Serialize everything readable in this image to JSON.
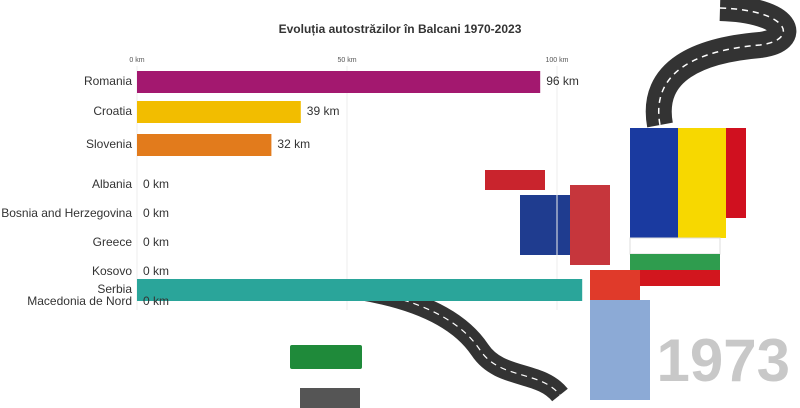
{
  "chart_data": {
    "type": "bar",
    "orientation": "horizontal",
    "title": "Evoluția autostrăzilor în Balcani 1970-2023",
    "categories": [
      "Romania",
      "Croatia",
      "Slovenia",
      "Albania",
      "Bosnia and Herzegovina",
      "Greece",
      "Kosovo",
      "Serbia",
      "Macedonia de Nord"
    ],
    "values": [
      96,
      39,
      32,
      0,
      0,
      0,
      0,
      106,
      0
    ],
    "value_labels": [
      "96 km",
      "39 km",
      "32 km",
      "0 km",
      "0 km",
      "0 km",
      "0 km",
      null,
      "0 km"
    ],
    "colors": [
      "#a3186f",
      "#f2bd00",
      "#e27b1c",
      "#888888",
      "#888888",
      "#888888",
      "#888888",
      "#2aa59a",
      "#888888"
    ],
    "xlim": [
      0,
      100
    ],
    "xticks": [
      {
        "value": 0,
        "label": "0 km"
      },
      {
        "value": 50,
        "label": "50 km"
      },
      {
        "value": 100,
        "label": "100 km"
      }
    ],
    "grid": true,
    "year": "1973"
  }
}
